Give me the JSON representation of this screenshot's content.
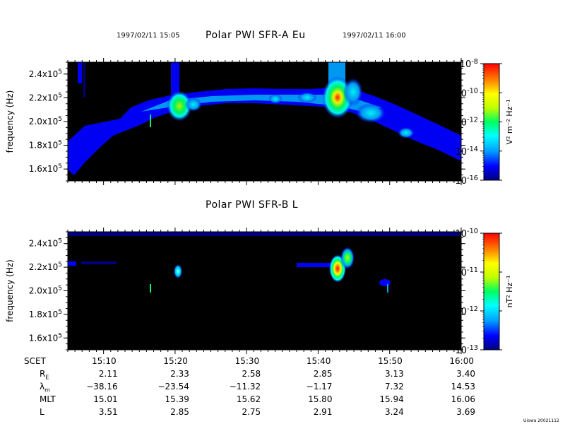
{
  "header": {
    "time_start": "1997/02/11 15:05",
    "time_end": "1997/02/11 16:00"
  },
  "colors": {
    "background": "#000000",
    "colormap": [
      "#00007f",
      "#0000ff",
      "#00a0ff",
      "#00ffff",
      "#00ff60",
      "#c0ff00",
      "#ffff00",
      "#ff8000",
      "#ff0000"
    ]
  },
  "chart_data": [
    {
      "type": "heatmap",
      "title": "Polar PWI SFR-A Eu",
      "ylabel": "frequency (Hz)",
      "yticks": [
        "1.6x10^5",
        "1.8x10^5",
        "2.0x10^5",
        "2.2x10^5",
        "2.4x10^5"
      ],
      "ylim": [
        150000,
        250000
      ],
      "xlim_minutes": [
        5,
        60
      ],
      "colorbar": {
        "label": "V² m⁻² Hz⁻¹",
        "scale": "log",
        "ticks": [
          "10^-8",
          "10^-10",
          "10^-12",
          "10^-14",
          "10^-16"
        ]
      }
    },
    {
      "type": "heatmap",
      "title": "Polar PWI SFR-B L",
      "ylabel": "frequency (Hz)",
      "yticks": [
        "1.6x10^5",
        "1.8x10^5",
        "2.0x10^5",
        "2.2x10^5",
        "2.4x10^5"
      ],
      "ylim": [
        150000,
        250000
      ],
      "xlim_minutes": [
        5,
        60
      ],
      "colorbar": {
        "label": "nT² Hz⁻¹",
        "scale": "log",
        "ticks": [
          "10^-10",
          "10^-11",
          "10^-12",
          "10^-13"
        ]
      }
    }
  ],
  "ephemeris": {
    "row_labels": [
      "SCET",
      "R_E",
      "λ_m",
      "MLT",
      "L"
    ],
    "columns": [
      {
        "SCET": "15:10",
        "RE": "2.11",
        "lam": "−38.16",
        "MLT": "15.01",
        "L": "3.51"
      },
      {
        "SCET": "15:20",
        "RE": "2.33",
        "lam": "−23.54",
        "MLT": "15.39",
        "L": "2.85"
      },
      {
        "SCET": "15:30",
        "RE": "2.58",
        "lam": "−11.32",
        "MLT": "15.62",
        "L": "2.75"
      },
      {
        "SCET": "15:40",
        "RE": "2.85",
        "lam": "−1.17",
        "MLT": "15.80",
        "L": "2.91"
      },
      {
        "SCET": "15:50",
        "RE": "3.13",
        "lam": "7.32",
        "MLT": "15.94",
        "L": "3.24"
      },
      {
        "SCET": "16:00",
        "RE": "3.40",
        "lam": "14.53",
        "MLT": "16.06",
        "L": "3.69"
      }
    ]
  },
  "footer": {
    "credit": "Uiowa 20021112"
  }
}
